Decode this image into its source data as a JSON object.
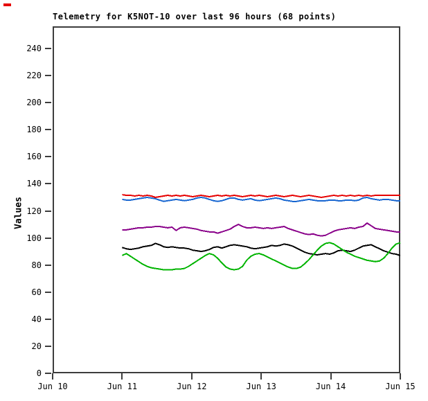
{
  "title": "Telemetry for K5NOT-10 over last 96 hours (68 points)",
  "decor": {
    "corner_mark_color": "#e60000"
  },
  "chart_data": {
    "type": "line",
    "title": "Telemetry for K5NOT-10 over last 96 hours (68 points)",
    "xlabel": "",
    "ylabel": "Values",
    "ylim": [
      0,
      256
    ],
    "grid": false,
    "legend": "none",
    "frame_color": "#3c3c3c",
    "background": "#ffffff",
    "y_ticks": [
      0,
      20,
      40,
      60,
      80,
      100,
      120,
      140,
      160,
      180,
      200,
      220,
      240
    ],
    "x_tick_labels": [
      "Jun 10",
      "Jun 11",
      "Jun 12",
      "Jun 13",
      "Jun 14",
      "Jun 15"
    ],
    "points_per_series": 68,
    "series_time_span": {
      "start": "Jun 11",
      "end": "Jun 15",
      "hours": 96
    },
    "series": [
      {
        "name": "blue",
        "color": "#1565d0",
        "values": [
          128.5,
          128,
          128,
          128.5,
          129,
          129.5,
          130,
          129.5,
          129,
          128,
          127,
          127.5,
          128,
          128.5,
          128,
          127.5,
          128,
          128.5,
          129.5,
          130,
          129.5,
          128.5,
          127.5,
          127,
          127.5,
          128.5,
          129.5,
          129.5,
          128.5,
          128,
          128.5,
          129,
          128,
          127.5,
          128,
          128.5,
          129,
          129.5,
          129,
          128,
          127.5,
          127,
          127,
          127.5,
          128,
          128.5,
          128,
          127.5,
          127.5,
          127.5,
          128,
          128,
          127.5,
          127.5,
          128,
          128,
          127.5,
          128,
          129.5,
          130,
          129,
          128.5,
          128,
          128.5,
          128.5,
          128,
          127.5,
          127.5
        ]
      },
      {
        "name": "red",
        "color": "#e60000",
        "values": [
          132,
          131.5,
          131.5,
          131,
          131.5,
          131,
          131.5,
          131,
          130,
          130.5,
          131,
          131.5,
          131,
          131.5,
          131,
          131.5,
          131,
          130.5,
          131,
          131.5,
          131,
          130.5,
          131,
          131.5,
          131,
          131.5,
          131,
          131.5,
          131,
          130.5,
          131,
          131.5,
          131,
          131.5,
          131,
          130.5,
          131,
          131.5,
          131,
          130.5,
          131,
          131.5,
          131,
          130.5,
          131,
          131.5,
          131,
          130.5,
          130,
          130.5,
          131,
          131.5,
          131,
          131.5,
          131,
          131.5,
          131,
          131.5,
          131,
          131.5,
          131,
          131.5,
          131.5,
          131.5,
          131.5,
          131.5,
          131.5,
          131.5
        ]
      },
      {
        "name": "purple",
        "color": "#8a008a",
        "values": [
          106,
          106,
          106.5,
          107,
          107.5,
          107.5,
          108,
          108,
          108.5,
          108.5,
          108,
          107.5,
          108,
          105.5,
          107.5,
          108,
          107.5,
          107,
          106.5,
          105.5,
          105,
          104.5,
          104.5,
          103.5,
          104.5,
          105.5,
          106.5,
          108.5,
          110,
          108.5,
          107.5,
          107.5,
          108,
          107.5,
          107,
          107.5,
          107,
          107.5,
          108,
          108.5,
          107,
          106,
          105,
          104,
          103,
          102.5,
          103,
          102,
          101.5,
          102,
          103.5,
          105,
          106,
          106.5,
          107,
          107.5,
          107,
          108,
          108.5,
          111,
          109,
          107,
          106.5,
          106,
          105.5,
          105,
          104.5,
          104.5
        ]
      },
      {
        "name": "black",
        "color": "#000000",
        "values": [
          93,
          92,
          91.5,
          92,
          92.5,
          93.5,
          94,
          94.5,
          96,
          95,
          93.5,
          93,
          93.5,
          93,
          92.5,
          92.5,
          92,
          91,
          90.5,
          90,
          90.5,
          91.5,
          93,
          93.5,
          92.5,
          93.5,
          94.5,
          95,
          94.5,
          94,
          93.5,
          92.5,
          92,
          92.5,
          93,
          93.5,
          94.5,
          94,
          94.5,
          95.5,
          95,
          94,
          92.5,
          91,
          89.5,
          88.5,
          88,
          87.5,
          88,
          88.5,
          88,
          89,
          90.5,
          91,
          90.5,
          90,
          91,
          92.5,
          94,
          94.5,
          95,
          93.5,
          92,
          90.5,
          89.5,
          88.5,
          88,
          87
        ]
      },
      {
        "name": "green",
        "color": "#00b400",
        "values": [
          87,
          88.5,
          86.5,
          84.5,
          82.5,
          80.5,
          79,
          78,
          77.5,
          77,
          76.5,
          76.5,
          76.5,
          77,
          77,
          77.5,
          79,
          81,
          83,
          85,
          87,
          88.5,
          87.5,
          85,
          81.5,
          78.5,
          77,
          76.5,
          77,
          79,
          83.5,
          86.5,
          88,
          88.5,
          87.5,
          86,
          84.5,
          83,
          81.5,
          80,
          78.5,
          77.5,
          77.5,
          78.5,
          81,
          84,
          87.5,
          91,
          94,
          96,
          96.5,
          95.5,
          93.5,
          91.5,
          89.5,
          88,
          86.5,
          85.5,
          84.5,
          83.5,
          83,
          82.5,
          83,
          85,
          88.5,
          92.5,
          95.5,
          96.5
        ]
      }
    ]
  }
}
